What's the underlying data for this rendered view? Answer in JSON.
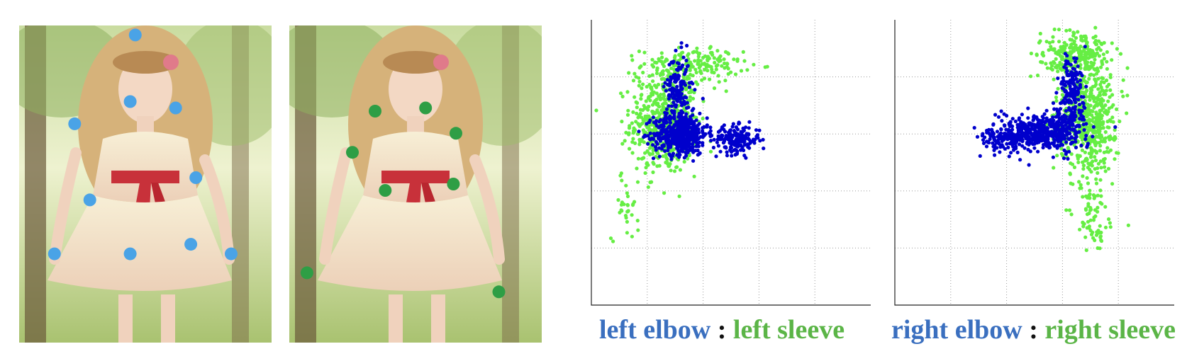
{
  "colors": {
    "joint_marker": "#4aa3e6",
    "sleeve_marker": "#2e9e45",
    "elbow_series": "#0000cc",
    "sleeve_series": "#66ee44",
    "caption_elbow": "#3a6fbf",
    "caption_sleeve": "#5bb547"
  },
  "photos": [
    {
      "name": "human-pose-joints",
      "markers": [
        [
          0.46,
          0.03
        ],
        [
          0.44,
          0.24
        ],
        [
          0.62,
          0.26
        ],
        [
          0.22,
          0.31
        ],
        [
          0.7,
          0.48
        ],
        [
          0.28,
          0.55
        ],
        [
          0.14,
          0.72
        ],
        [
          0.44,
          0.72
        ],
        [
          0.68,
          0.69
        ],
        [
          0.84,
          0.72
        ]
      ]
    },
    {
      "name": "clothing-sleeve-landmarks",
      "markers": [
        [
          0.34,
          0.27
        ],
        [
          0.54,
          0.26
        ],
        [
          0.66,
          0.34
        ],
        [
          0.25,
          0.4
        ],
        [
          0.38,
          0.52
        ],
        [
          0.65,
          0.5
        ],
        [
          0.07,
          0.78
        ],
        [
          0.83,
          0.84
        ]
      ]
    }
  ],
  "chart_data": [
    {
      "type": "scatter",
      "title": "",
      "xlabel": "",
      "ylabel": "",
      "xlim": [
        0,
        10
      ],
      "ylim": [
        0,
        10
      ],
      "grid": true,
      "series": [
        {
          "name": "left elbow",
          "color": "#0000cc",
          "clusters": [
            [
              3.2,
              6.0,
              0.8,
              0.6,
              500
            ],
            [
              5.2,
              5.8,
              0.7,
              0.4,
              180
            ],
            [
              3.1,
              7.6,
              0.35,
              1.0,
              140
            ]
          ]
        },
        {
          "name": "left sleeve",
          "color": "#66ee44",
          "clusters": [
            [
              2.6,
              6.4,
              1.0,
              1.5,
              550
            ],
            [
              3.6,
              8.4,
              1.5,
              0.5,
              180
            ],
            [
              1.2,
              3.5,
              0.4,
              1.0,
              30
            ]
          ]
        }
      ],
      "caption": {
        "elbow": "left elbow",
        "sep": ":",
        "sleeve": "left sleeve"
      }
    },
    {
      "type": "scatter",
      "title": "",
      "xlabel": "",
      "ylabel": "",
      "xlim": [
        0,
        10
      ],
      "ylim": [
        0,
        10
      ],
      "grid": true,
      "series": [
        {
          "name": "right elbow",
          "color": "#0000cc",
          "clusters": [
            [
              5.4,
              6.1,
              1.1,
              0.5,
              450
            ],
            [
              6.3,
              7.5,
              0.4,
              1.0,
              160
            ],
            [
              4.0,
              5.9,
              0.8,
              0.6,
              140
            ]
          ]
        },
        {
          "name": "right sleeve",
          "color": "#66ee44",
          "clusters": [
            [
              6.9,
              6.6,
              0.9,
              1.9,
              600
            ],
            [
              6.4,
              8.8,
              1.0,
              0.6,
              200
            ],
            [
              7.0,
              3.0,
              0.5,
              1.0,
              60
            ]
          ]
        }
      ],
      "caption": {
        "elbow": "right elbow",
        "sep": ":",
        "sleeve": "right sleeve"
      }
    }
  ]
}
